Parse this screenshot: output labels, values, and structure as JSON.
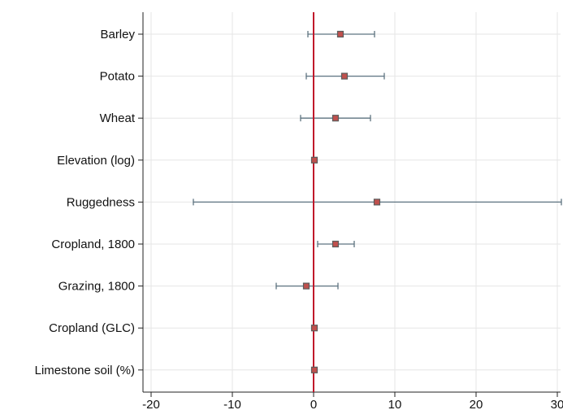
{
  "chart_data": {
    "type": "scatter",
    "orientation": "horizontal",
    "title": "",
    "xlabel": "",
    "ylabel": "",
    "xlim": [
      -20,
      30
    ],
    "xticks": [
      -20,
      -10,
      0,
      10,
      20,
      30
    ],
    "grid": true,
    "reference_line": {
      "x": 0,
      "color": "#c0182a"
    },
    "colors": {
      "marker_fill": "#c0504d",
      "marker_edge": "#5b5b5b",
      "ci_line": "#5d7380"
    },
    "categories": [
      "Barley",
      "Potato",
      "Wheat",
      "Elevation (log)",
      "Ruggedness",
      "Cropland, 1800",
      "Grazing, 1800",
      "Cropland (GLC)",
      "Limestone soil (%)"
    ],
    "estimates": [
      3.3,
      3.8,
      2.7,
      0.1,
      7.8,
      2.7,
      -0.9,
      0.1,
      0.1
    ],
    "ci_low": [
      -0.7,
      -0.9,
      -1.6,
      0.1,
      -14.8,
      0.5,
      -4.6,
      0.1,
      0.1
    ],
    "ci_high": [
      7.5,
      8.7,
      7.0,
      0.1,
      30.5,
      5.0,
      3.0,
      0.1,
      0.1
    ]
  }
}
